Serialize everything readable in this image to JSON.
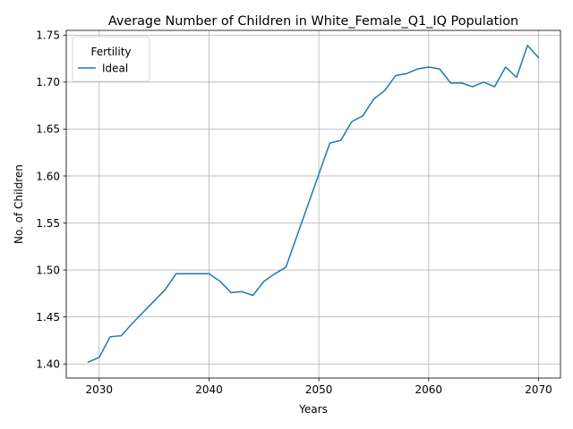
{
  "chart_data": {
    "type": "line",
    "title": "Average Number of Children in White_Female_Q1_IQ Population",
    "xlabel": "Years",
    "ylabel": "No. of Children",
    "xlim": [
      2027,
      2072
    ],
    "ylim": [
      1.385,
      1.755
    ],
    "xticks": [
      2030,
      2040,
      2050,
      2060,
      2070
    ],
    "xtick_labels": [
      "2030",
      "2040",
      "2050",
      "2060",
      "2070"
    ],
    "yticks": [
      1.4,
      1.45,
      1.5,
      1.55,
      1.6,
      1.65,
      1.7,
      1.75
    ],
    "ytick_labels": [
      "1.40",
      "1.45",
      "1.50",
      "1.55",
      "1.60",
      "1.65",
      "1.70",
      "1.75"
    ],
    "grid": true,
    "legend": {
      "title": "Fertility",
      "position": "top-left"
    },
    "series": [
      {
        "name": "Ideal",
        "color": "#1f77b4",
        "x": [
          2029,
          2030,
          2031,
          2032,
          2033,
          2034,
          2035,
          2036,
          2037,
          2038,
          2039,
          2040,
          2041,
          2042,
          2043,
          2044,
          2045,
          2046,
          2047,
          2048,
          2049,
          2050,
          2051,
          2052,
          2053,
          2054,
          2055,
          2056,
          2057,
          2058,
          2059,
          2060,
          2061,
          2062,
          2063,
          2064,
          2065,
          2066,
          2067,
          2068,
          2069,
          2070
        ],
        "y": [
          1.402,
          1.407,
          1.429,
          1.43,
          1.443,
          1.455,
          1.467,
          1.479,
          1.496,
          1.496,
          1.496,
          1.496,
          1.488,
          1.476,
          1.477,
          1.473,
          1.488,
          1.496,
          1.503,
          1.536,
          1.569,
          1.602,
          1.635,
          1.638,
          1.658,
          1.664,
          1.682,
          1.691,
          1.707,
          1.709,
          1.714,
          1.716,
          1.714,
          1.699,
          1.699,
          1.695,
          1.7,
          1.695,
          1.716,
          1.705,
          1.739,
          1.726
        ]
      }
    ]
  }
}
